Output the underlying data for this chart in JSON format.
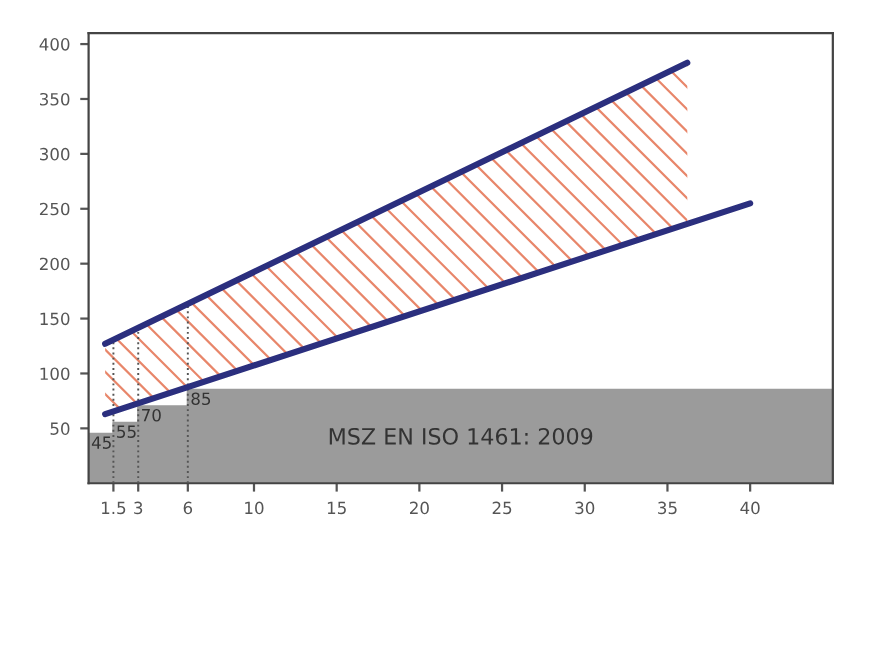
{
  "chart_data": {
    "type": "line",
    "xlim": [
      0,
      45
    ],
    "ylim": [
      0,
      410
    ],
    "xticks": [
      1.5,
      3,
      6,
      10,
      15,
      20,
      25,
      30,
      35,
      40
    ],
    "yticks": [
      50,
      100,
      150,
      200,
      250,
      300,
      350,
      400
    ],
    "grid": false,
    "legend": false,
    "marker": "none",
    "line_style": "solid",
    "series": [
      {
        "color": "#2b2f7e",
        "x": [
          1,
          36.2
        ],
        "values": [
          127,
          383
        ],
        "lower": [
          63,
          236
        ],
        "upper": [
          127,
          383
        ]
      },
      {
        "color": "#2b2f7e",
        "x": [
          1,
          40
        ],
        "values": [
          63,
          255
        ]
      },
      {
        "type": "area",
        "color": "#9b9b9b",
        "x": [
          0,
          1.5,
          1.5,
          3,
          3,
          6,
          6,
          45
        ],
        "values": [
          45,
          45,
          55,
          55,
          70,
          70,
          85,
          85
        ],
        "value_labels": [
          "45",
          null,
          "55",
          null,
          "70",
          null,
          "85",
          null
        ]
      }
    ],
    "ref_lines": [
      {
        "axis": "x",
        "value": 1.5,
        "line_style": "dotted",
        "color": "#555555"
      },
      {
        "axis": "x",
        "value": 3,
        "line_style": "dotted",
        "color": "#555555"
      },
      {
        "axis": "x",
        "value": 6,
        "line_style": "dotted",
        "color": "#555555"
      }
    ],
    "annotations": [
      "MSZ EN ISO 1461: 2009"
    ]
  }
}
